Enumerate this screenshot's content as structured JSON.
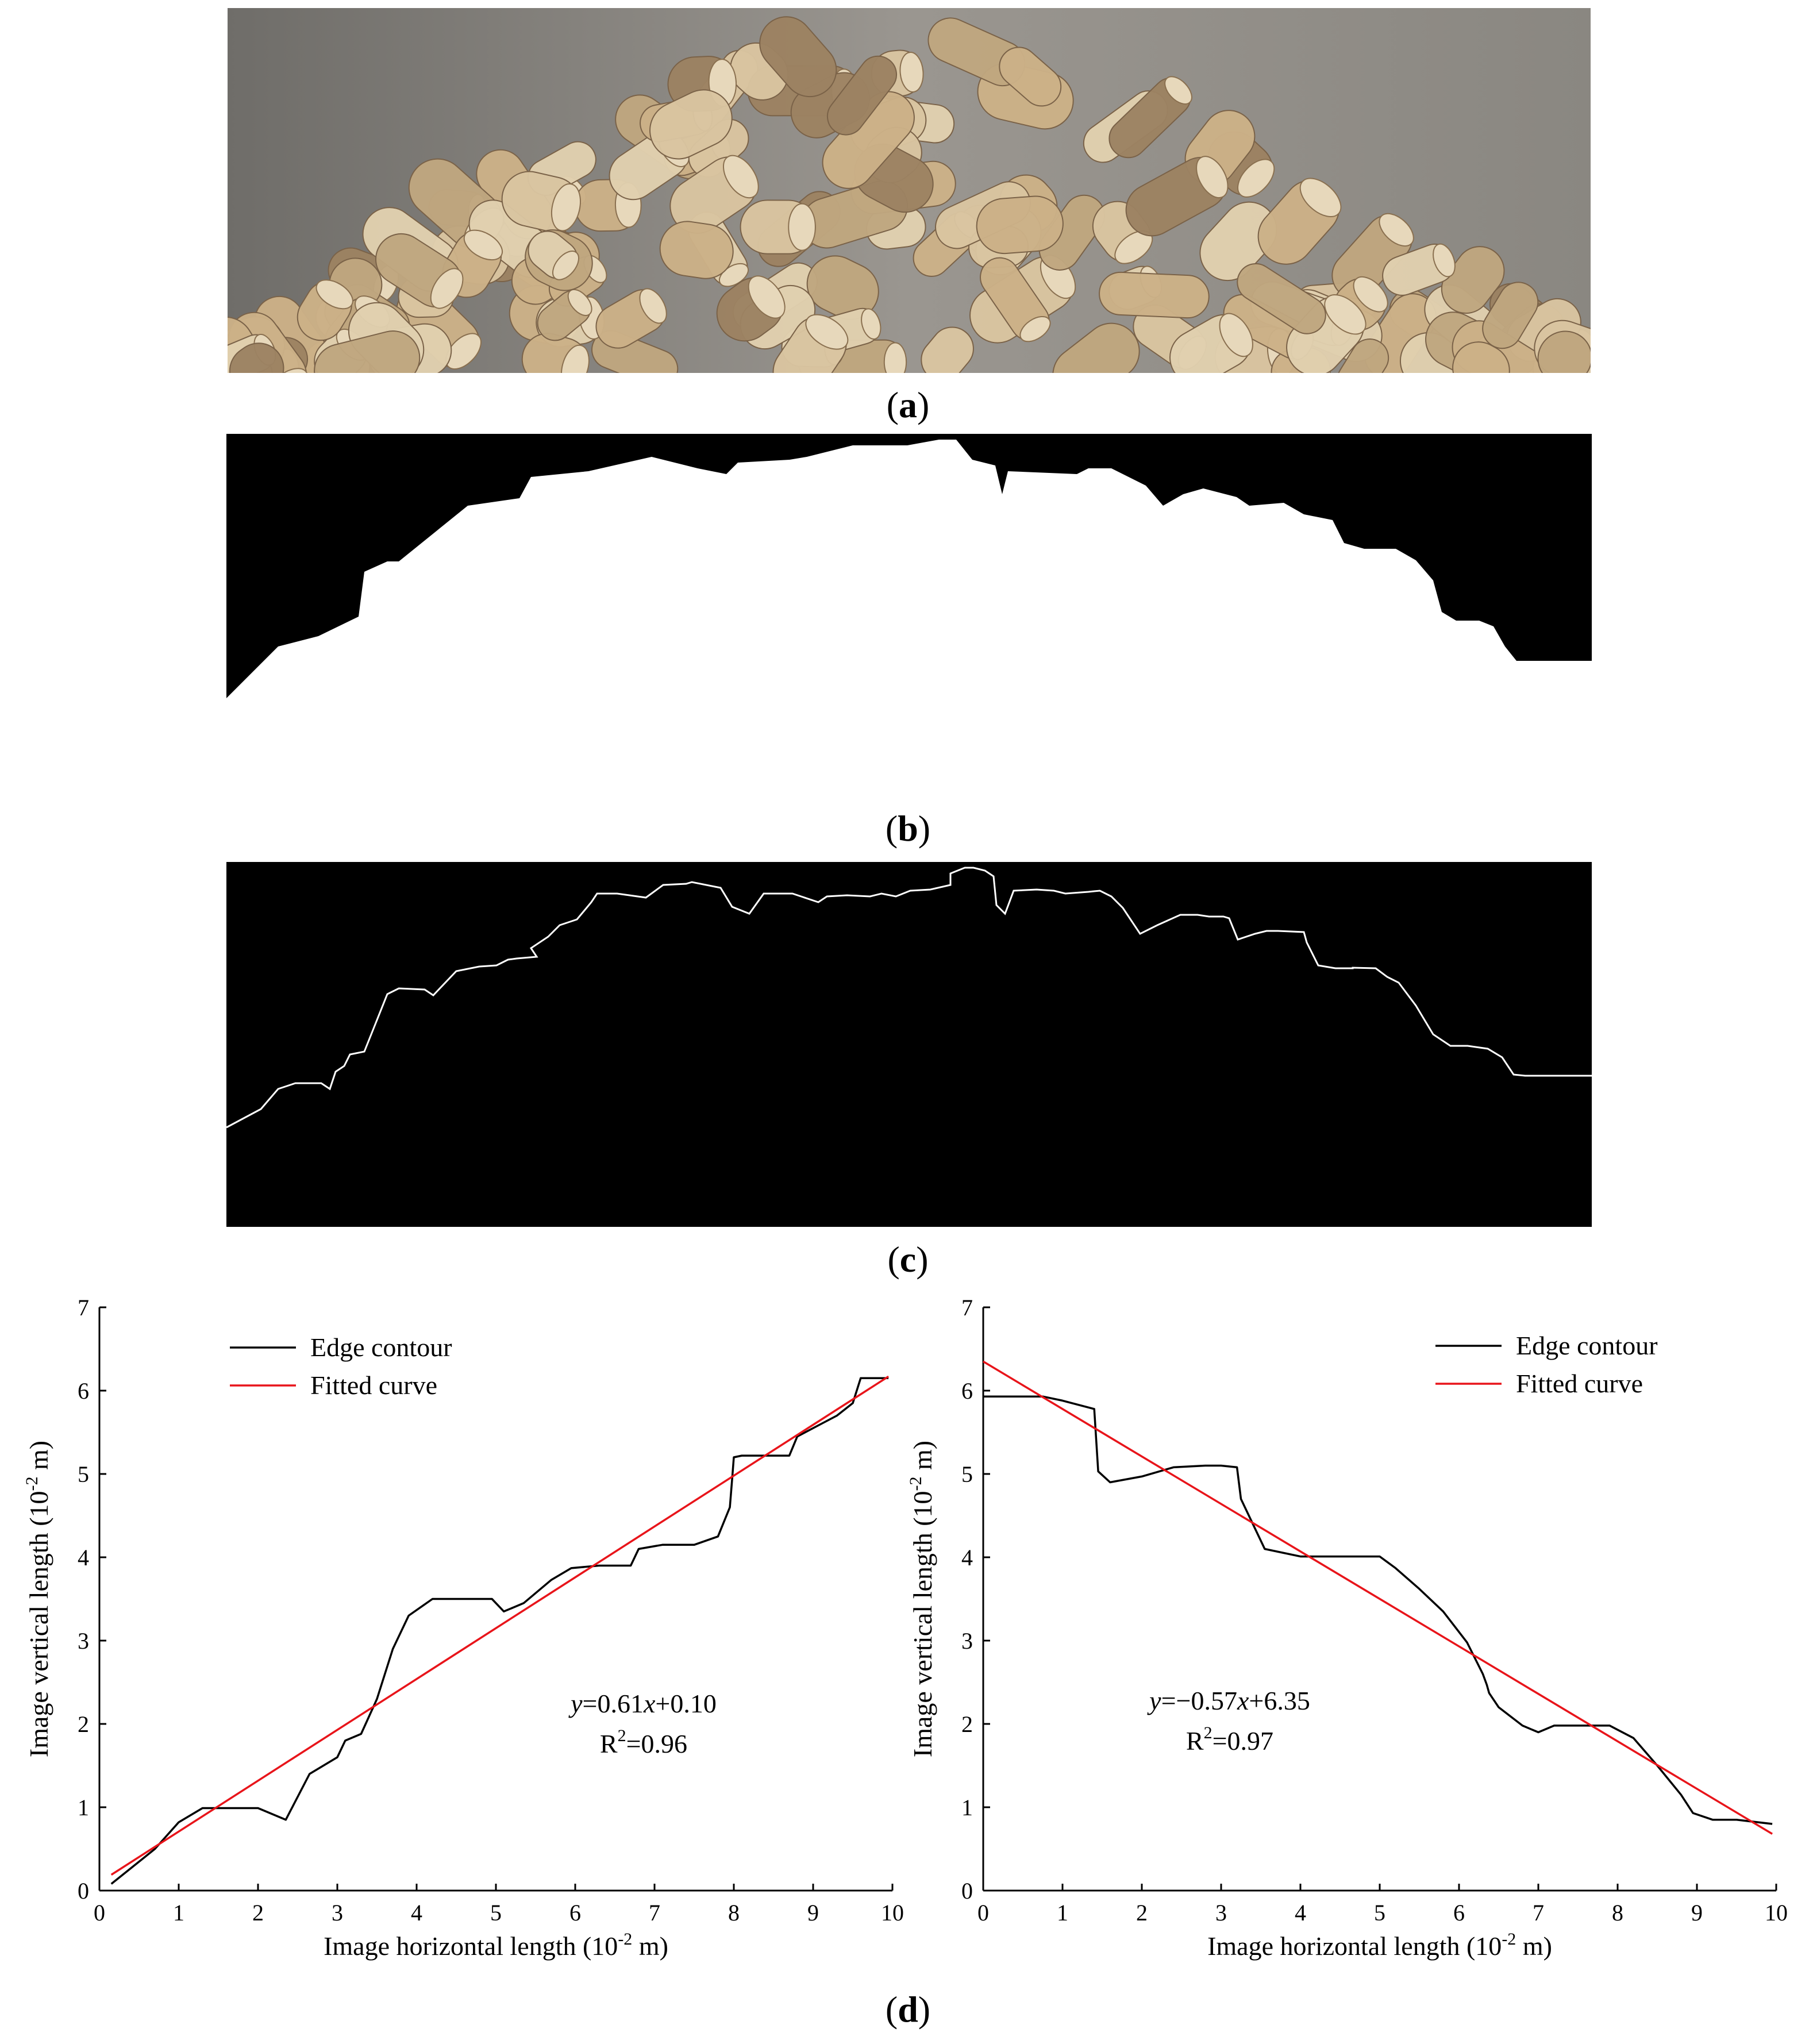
{
  "captions": {
    "a": "a",
    "b": "b",
    "c": "c",
    "d": "d"
  },
  "colors": {
    "edge": "#000000",
    "fit": "#e8141a",
    "pellet_light": "#d9c4a0",
    "pellet_dark": "#9c8262",
    "background_gray": "#8d8a84"
  },
  "chart_data": [
    {
      "type": "line",
      "xlabel": "Image horizontal length (10-2 m)",
      "ylabel": "Image vertical length (10-2 m)",
      "xlim": [
        0,
        10
      ],
      "ylim": [
        0,
        7
      ],
      "xticks": [
        "0",
        "1",
        "2",
        "3",
        "4",
        "5",
        "6",
        "7",
        "8",
        "9",
        "10"
      ],
      "yticks": [
        "0",
        "1",
        "2",
        "3",
        "4",
        "5",
        "6",
        "7"
      ],
      "legend": [
        "Edge  contour",
        "Fitted curve"
      ],
      "legend_position": "top-left",
      "equation": "y=0.61x+0.10",
      "r2": "R2=0.96",
      "series": [
        {
          "name": "Edge  contour",
          "x": [
            0.15,
            0.7,
            1.0,
            1.3,
            2.0,
            2.35,
            2.65,
            3.0,
            3.1,
            3.3,
            3.5,
            3.6,
            3.7,
            3.9,
            4.2,
            4.95,
            5.1,
            5.35,
            5.7,
            5.95,
            6.3,
            6.7,
            6.8,
            7.1,
            7.5,
            7.8,
            7.95,
            7.98,
            8.0,
            8.1,
            8.7,
            8.8,
            9.1,
            9.3,
            9.5,
            9.6,
            9.95
          ],
          "y": [
            0.08,
            0.5,
            0.82,
            0.99,
            0.99,
            0.85,
            1.4,
            1.6,
            1.8,
            1.88,
            2.3,
            2.6,
            2.9,
            3.3,
            3.5,
            3.5,
            3.35,
            3.45,
            3.73,
            3.87,
            3.9,
            3.9,
            4.1,
            4.15,
            4.15,
            4.25,
            4.6,
            4.95,
            5.2,
            5.22,
            5.22,
            5.45,
            5.6,
            5.7,
            5.85,
            6.15,
            6.15
          ]
        },
        {
          "name": "Fitted curve",
          "x": [
            0.15,
            9.95
          ],
          "y": [
            0.19,
            6.17
          ]
        }
      ]
    },
    {
      "type": "line",
      "xlabel": "Image horizontal length (10-2 m)",
      "ylabel": "Image vertical length (10-2 m)",
      "xlim": [
        0,
        10
      ],
      "ylim": [
        0,
        7
      ],
      "xticks": [
        "0",
        "1",
        "2",
        "3",
        "4",
        "5",
        "6",
        "7",
        "8",
        "9",
        "10"
      ],
      "yticks": [
        "0",
        "1",
        "2",
        "3",
        "4",
        "5",
        "6",
        "7"
      ],
      "legend": [
        "Edge  contour",
        "Fitted curve"
      ],
      "legend_position": "top-right",
      "equation": "y=−0.57x+6.35",
      "r2": "R2=0.97",
      "series": [
        {
          "name": "Edge  contour",
          "x": [
            0.0,
            0.75,
            1.0,
            1.4,
            1.45,
            1.6,
            2.0,
            2.4,
            2.8,
            3.0,
            3.2,
            3.25,
            3.55,
            4.0,
            4.4,
            5.0,
            5.2,
            5.5,
            5.8,
            6.1,
            6.3,
            6.35,
            6.38,
            6.5,
            6.8,
            7.0,
            7.2,
            7.5,
            7.9,
            8.0,
            8.2,
            8.5,
            8.8,
            8.95,
            9.2,
            9.5,
            9.95
          ],
          "y": [
            5.93,
            5.93,
            5.88,
            5.78,
            5.03,
            4.9,
            4.97,
            5.08,
            5.1,
            5.1,
            5.08,
            4.7,
            4.1,
            4.01,
            4.01,
            4.01,
            3.87,
            3.62,
            3.35,
            2.98,
            2.6,
            2.47,
            2.37,
            2.2,
            1.98,
            1.9,
            1.98,
            1.98,
            1.98,
            1.93,
            1.83,
            1.5,
            1.15,
            0.93,
            0.85,
            0.85,
            0.8
          ]
        },
        {
          "name": "Fitted curve",
          "x": [
            0.0,
            9.95
          ],
          "y": [
            6.35,
            0.68
          ]
        }
      ]
    }
  ]
}
